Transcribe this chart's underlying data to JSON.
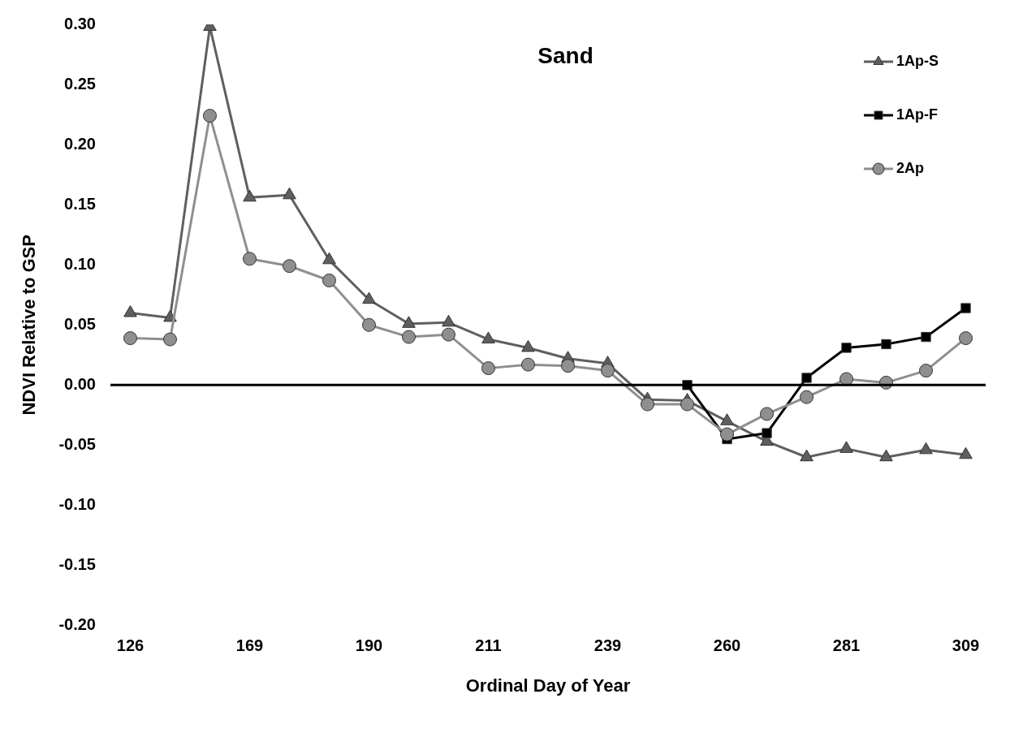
{
  "chart_data": {
    "type": "line",
    "title": "Sand",
    "xlabel": "Ordinal Day of Year",
    "ylabel": "NDVI Relative to GSP",
    "categories": [
      "126",
      null,
      null,
      "169",
      null,
      null,
      "190",
      null,
      null,
      "211",
      null,
      null,
      "239",
      null,
      null,
      "260",
      null,
      null,
      "281",
      null,
      null,
      "309"
    ],
    "series": [
      {
        "name": "1Ap-S",
        "color": "#5f5f5f",
        "marker": "triangle",
        "values": [
          0.06,
          0.056,
          0.298,
          0.156,
          0.158,
          0.104,
          0.071,
          0.051,
          0.052,
          0.038,
          0.031,
          0.022,
          0.018,
          -0.012,
          -0.013,
          -0.03,
          -0.047,
          -0.06,
          -0.053,
          -0.06,
          -0.054,
          -0.058
        ]
      },
      {
        "name": "1Ap-F",
        "color": "#000000",
        "marker": "square",
        "values": [
          null,
          null,
          null,
          null,
          null,
          null,
          null,
          null,
          null,
          null,
          null,
          null,
          null,
          null,
          0,
          -0.045,
          -0.04,
          0.006,
          0.031,
          0.034,
          0.04,
          0.064
        ]
      },
      {
        "name": "2Ap",
        "color": "#8f8f8f",
        "marker": "circle",
        "values": [
          0.039,
          0.038,
          0.224,
          0.105,
          0.099,
          0.087,
          0.05,
          0.04,
          0.042,
          0.014,
          0.017,
          0.016,
          0.012,
          -0.016,
          -0.016,
          -0.041,
          -0.024,
          -0.01,
          0.005,
          0.002,
          0.012,
          0.039
        ]
      }
    ],
    "ylim": [
      -0.2,
      0.3
    ],
    "yticks": [
      {
        "value": -0.2,
        "label": "-0.20"
      },
      {
        "value": -0.15,
        "label": "-0.15"
      },
      {
        "value": -0.1,
        "label": "-0.10"
      },
      {
        "value": -0.05,
        "label": "-0.05"
      },
      {
        "value": 0,
        "label": "0.00"
      },
      {
        "value": 0.05,
        "label": "0.05"
      },
      {
        "value": 0.1,
        "label": "0.10"
      },
      {
        "value": 0.15,
        "label": "0.15"
      },
      {
        "value": 0.2,
        "label": "0.20"
      },
      {
        "value": 0.25,
        "label": "0.25"
      },
      {
        "value": 0.3,
        "label": "0.30"
      }
    ],
    "ref_lines": [
      {
        "axis": "y",
        "value": 0,
        "color": "#000000",
        "line_style": "solid"
      }
    ],
    "grid": false,
    "legend": "top right",
    "line_style": "solid"
  }
}
